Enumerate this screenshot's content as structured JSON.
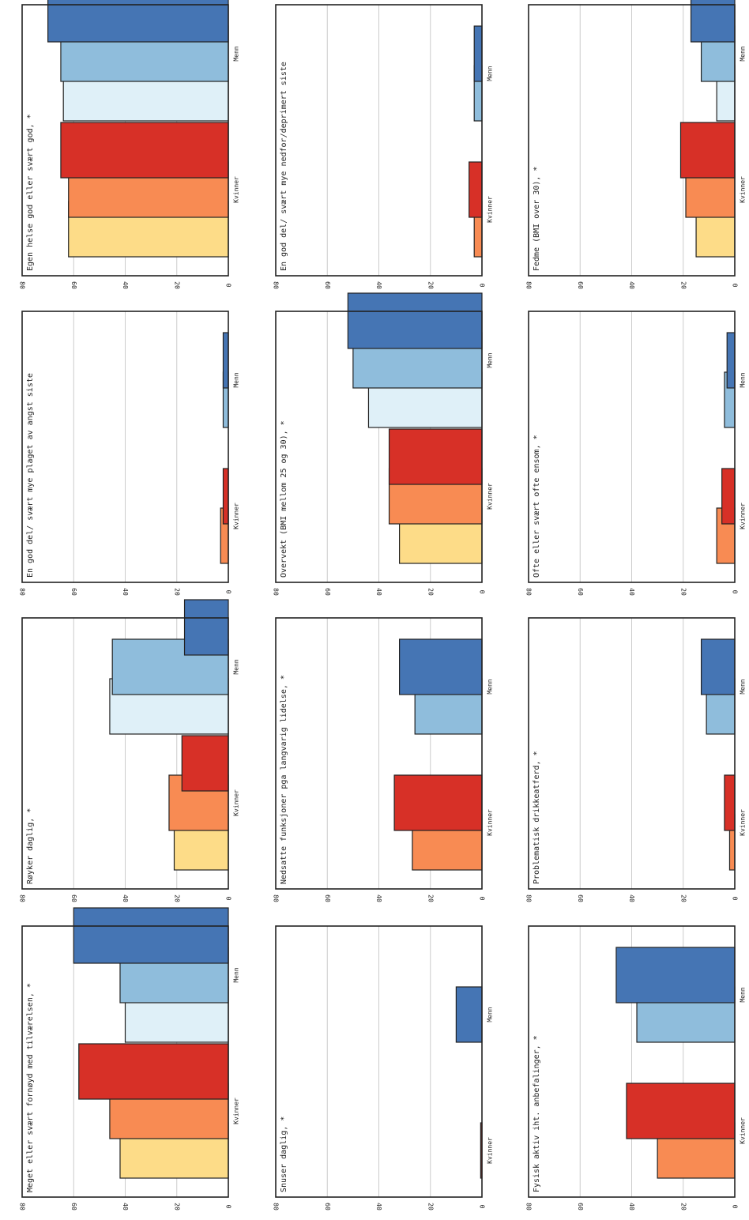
{
  "chart_data": [
    {
      "type": "bar",
      "title": "Egen helse god eller svært god, *",
      "categories": [
        "Kvinner",
        "Menn"
      ],
      "series": [
        {
          "values": [
            62,
            64
          ]
        },
        {
          "values": [
            62,
            65
          ]
        },
        {
          "values": [
            65,
            70
          ]
        }
      ],
      "ylim": [
        0,
        80
      ],
      "ticks": [
        "0",
        "20",
        "40",
        "60",
        "80"
      ]
    },
    {
      "type": "bar",
      "title": "En god del/ svært mye plaget av angst siste",
      "categories": [
        "Kvinner",
        "Menn"
      ],
      "series": [
        {
          "values": [
            3,
            2
          ]
        },
        {
          "values": [
            2,
            2
          ]
        }
      ],
      "ylim": [
        0,
        80
      ],
      "ticks": [
        "0",
        "20",
        "40",
        "60",
        "80"
      ]
    },
    {
      "type": "bar",
      "title": "Røyker daglig, *",
      "categories": [
        "Kvinner",
        "Menn"
      ],
      "series": [
        {
          "values": [
            21,
            46
          ]
        },
        {
          "values": [
            23,
            45
          ]
        },
        {
          "values": [
            18,
            17
          ]
        }
      ],
      "ylim": [
        0,
        80
      ],
      "ticks": [
        "0",
        "20",
        "40",
        "60",
        "80"
      ]
    },
    {
      "type": "bar",
      "title": "Meget eller svært fornøyd med tilværelsen, *",
      "categories": [
        "Kvinner",
        "Menn"
      ],
      "series": [
        {
          "values": [
            42,
            40
          ]
        },
        {
          "values": [
            46,
            42
          ]
        },
        {
          "values": [
            58,
            60
          ]
        }
      ],
      "ylim": [
        0,
        80
      ],
      "ticks": [
        "0",
        "20",
        "40",
        "60",
        "80"
      ]
    },
    {
      "type": "bar",
      "title": "En god del/ svært mye nedfor/deprimert siste",
      "categories": [
        "Kvinner",
        "Menn"
      ],
      "series": [
        {
          "values": [
            3,
            3
          ]
        },
        {
          "values": [
            5,
            3
          ]
        }
      ],
      "ylim": [
        0,
        80
      ],
      "ticks": [
        "0",
        "20",
        "40",
        "60",
        "80"
      ]
    },
    {
      "type": "bar",
      "title": "Overvekt (BMI mellom 25 og 30), *",
      "categories": [
        "Kvinner",
        "Menn"
      ],
      "series": [
        {
          "values": [
            32,
            44
          ]
        },
        {
          "values": [
            36,
            50
          ]
        },
        {
          "values": [
            36,
            52
          ]
        }
      ],
      "ylim": [
        0,
        80
      ],
      "ticks": [
        "0",
        "20",
        "40",
        "60",
        "80"
      ]
    },
    {
      "type": "bar",
      "title": "Nedsatte funksjoner pga langvarig lidelse, *",
      "categories": [
        "Kvinner",
        "Menn"
      ],
      "series": [
        {
          "values": [
            27,
            26
          ]
        },
        {
          "values": [
            34,
            32
          ]
        }
      ],
      "ylim": [
        0,
        80
      ],
      "ticks": [
        "0",
        "20",
        "40",
        "60",
        "80"
      ]
    },
    {
      "type": "bar",
      "title": "Snuser daglig, *",
      "categories": [
        "Kvinner",
        "Menn"
      ],
      "series": [
        {
          "values": [
            0.5,
            10
          ]
        }
      ],
      "ylim": [
        0,
        80
      ],
      "ticks": [
        "0",
        "20",
        "40",
        "60",
        "80"
      ]
    },
    {
      "type": "bar",
      "title": "Fedme (BMI over 30), *",
      "categories": [
        "Kvinner",
        "Menn"
      ],
      "series": [
        {
          "values": [
            15,
            7
          ]
        },
        {
          "values": [
            19,
            13
          ]
        },
        {
          "values": [
            21,
            17
          ]
        }
      ],
      "ylim": [
        0,
        80
      ],
      "ticks": [
        "0",
        "20",
        "40",
        "60",
        "80"
      ]
    },
    {
      "type": "bar",
      "title": "Ofte eller svært ofte ensom, *",
      "categories": [
        "Kvinner",
        "Menn"
      ],
      "series": [
        {
          "values": [
            7,
            4
          ]
        },
        {
          "values": [
            5,
            3
          ]
        }
      ],
      "ylim": [
        0,
        80
      ],
      "ticks": [
        "0",
        "20",
        "40",
        "60",
        "80"
      ]
    },
    {
      "type": "bar",
      "title": "Problematisk drikkeatferd, *",
      "categories": [
        "Kvinner",
        "Menn"
      ],
      "series": [
        {
          "values": [
            2,
            11
          ]
        },
        {
          "values": [
            4,
            13
          ]
        }
      ],
      "ylim": [
        0,
        80
      ],
      "ticks": [
        "0",
        "20",
        "40",
        "60",
        "80"
      ]
    },
    {
      "type": "bar",
      "title": "Fysisk aktiv iht. anbefalinger, *",
      "categories": [
        "Kvinner",
        "Menn"
      ],
      "series": [
        {
          "values": [
            30,
            38
          ]
        },
        {
          "values": [
            42,
            46
          ]
        }
      ],
      "ylim": [
        0,
        80
      ],
      "ticks": [
        "0",
        "20",
        "40",
        "60",
        "80"
      ]
    }
  ],
  "palette": {
    "Kvinner": [
      "#fddc88",
      "#f88b53",
      "#d73027"
    ],
    "Menn": [
      "#dff0f8",
      "#8fbddc",
      "#4575b4"
    ]
  },
  "gridline_color": "#cccccc",
  "frame_color": "#222222"
}
